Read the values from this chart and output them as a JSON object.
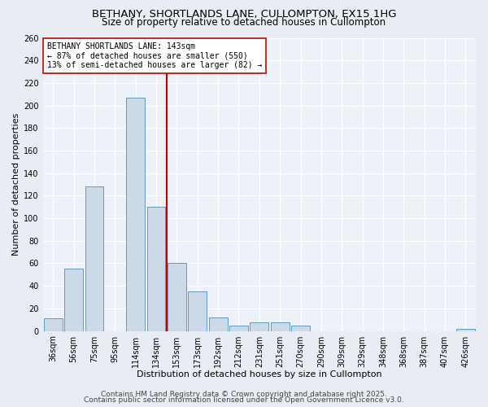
{
  "title1": "BETHANY, SHORTLANDS LANE, CULLOMPTON, EX15 1HG",
  "title2": "Size of property relative to detached houses in Cullompton",
  "xlabel": "Distribution of detached houses by size in Cullompton",
  "ylabel": "Number of detached properties",
  "bin_labels": [
    "36sqm",
    "56sqm",
    "75sqm",
    "95sqm",
    "114sqm",
    "134sqm",
    "153sqm",
    "173sqm",
    "192sqm",
    "212sqm",
    "231sqm",
    "251sqm",
    "270sqm",
    "290sqm",
    "309sqm",
    "329sqm",
    "348sqm",
    "368sqm",
    "387sqm",
    "407sqm",
    "426sqm"
  ],
  "values": [
    11,
    55,
    128,
    0,
    207,
    110,
    60,
    35,
    12,
    5,
    8,
    8,
    5,
    0,
    0,
    0,
    0,
    0,
    0,
    0,
    2
  ],
  "bar_color": "#ccd9e8",
  "bar_edge_color": "#6699bb",
  "vline_color": "#cc0000",
  "vline_x_index": 5,
  "annotation_text": "BETHANY SHORTLANDS LANE: 143sqm\n← 87% of detached houses are smaller (550)\n13% of semi-detached houses are larger (82) →",
  "annotation_box_color": "white",
  "annotation_box_edge_color": "#cc0000",
  "ylim": [
    0,
    260
  ],
  "yticks": [
    0,
    20,
    40,
    60,
    80,
    100,
    120,
    140,
    160,
    180,
    200,
    220,
    240,
    260
  ],
  "footer1": "Contains HM Land Registry data © Crown copyright and database right 2025.",
  "footer2": "Contains public sector information licensed under the Open Government Licence v3.0.",
  "bg_color": "#e8edf4",
  "plot_bg_color": "#edf2f8",
  "grid_color": "#ffffff",
  "title_fontsize": 9.5,
  "subtitle_fontsize": 8.5,
  "label_fontsize": 8,
  "tick_fontsize": 7,
  "footer_fontsize": 6.5,
  "annot_fontsize": 7
}
